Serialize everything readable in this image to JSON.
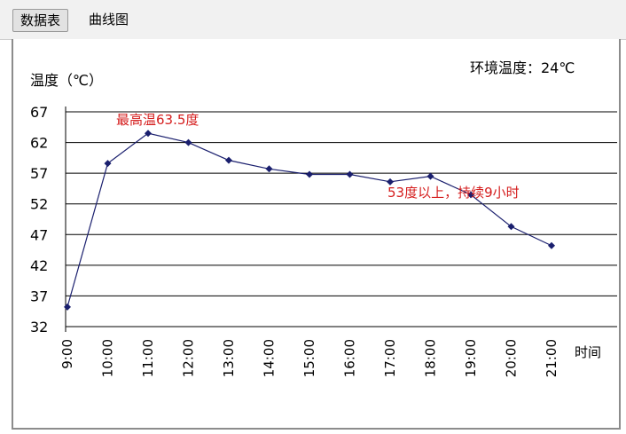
{
  "tabs": [
    {
      "label": "数据表",
      "active": true
    },
    {
      "label": "曲线图",
      "active": false
    }
  ],
  "chart_data": {
    "type": "line",
    "ylabel": "温度（℃）",
    "xlabel": "时间",
    "ambient_text": "环境温度：24℃",
    "categories": [
      "9:00",
      "10:00",
      "11:00",
      "12:00",
      "13:00",
      "14:00",
      "15:00",
      "16:00",
      "17:00",
      "18:00",
      "19:00",
      "20:00",
      "21:00"
    ],
    "yticks": [
      67,
      62,
      57,
      52,
      47,
      42,
      37,
      32
    ],
    "ylim": [
      32,
      67
    ],
    "grid": true,
    "series": [
      {
        "values": [
          35.2,
          58.6,
          63.5,
          62.0,
          59.1,
          57.7,
          56.8,
          56.8,
          55.6,
          56.5,
          53.5,
          48.3,
          45.2
        ],
        "color": "#1a1f6e",
        "marker": "diamond"
      }
    ],
    "annotations": [
      {
        "text": "最高温63.5度"
      },
      {
        "text": "53度以上，持续9小时"
      }
    ],
    "colors": {
      "line": "#1a1f6e",
      "annotation": "#d51e1e",
      "grid": "#000000"
    }
  }
}
